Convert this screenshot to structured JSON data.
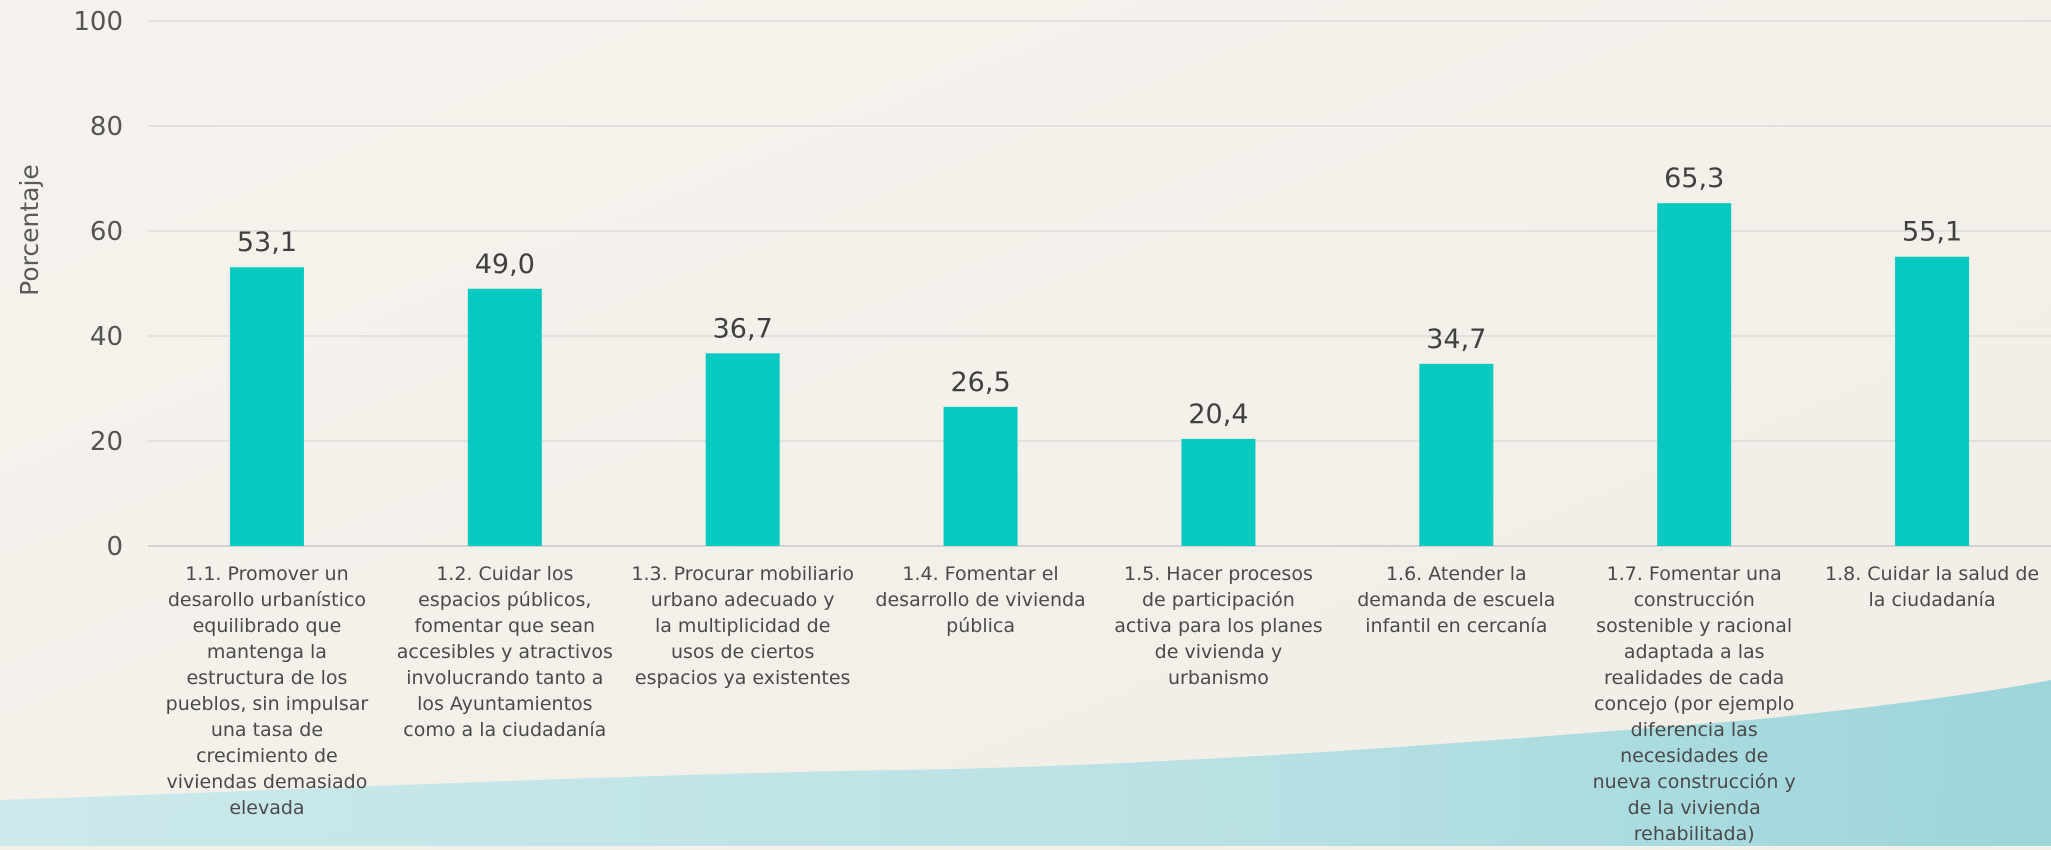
{
  "chart_data": {
    "type": "bar",
    "ylabel": "Porcentaje",
    "ylim": [
      0,
      100
    ],
    "yticks": [
      0,
      20,
      40,
      60,
      80,
      100
    ],
    "grid": true,
    "bar_color": "#08c9bf",
    "categories": [
      "1.1. Promover un desarollo urbanístico equilibrado que mantenga la estructura de los pueblos, sin impulsar una tasa de crecimiento de viviendas demasiado elevada",
      "1.2. Cuidar los espacios públicos, fomentar que sean accesibles y atractivos involucrando tanto a los Ayuntamientos como a la ciudadanía",
      "1.3. Procurar mobiliario urbano adecuado y la multiplicidad de usos de ciertos espacios ya existentes",
      "1.4. Fomentar el desarrollo de vivienda pública",
      "1.5. Hacer procesos de participación activa para los planes de vivienda y urbanismo",
      "1.6. Atender la demanda de escuela infantil en cercanía",
      "1.7. Fomentar una construcción sostenible y racional adaptada a las realidades de cada concejo (por ejemplo diferencia las necesidades de nueva construcción y de la vivienda rehabilitada)",
      "1.8. Cuidar la salud de la ciudadanía"
    ],
    "category_lines": [
      [
        "1.1. Promover un",
        "desarollo urbanístico",
        "equilibrado que",
        "mantenga la",
        "estructura de los",
        "pueblos, sin impulsar",
        "una tasa de",
        "crecimiento de",
        "viviendas demasiado",
        "elevada"
      ],
      [
        "1.2. Cuidar los",
        "espacios públicos,",
        "fomentar que sean",
        "accesibles y atractivos",
        "involucrando tanto a",
        "los Ayuntamientos",
        "como a la ciudadanía"
      ],
      [
        "1.3. Procurar mobiliario",
        "urbano adecuado y",
        "la multiplicidad de",
        "usos de ciertos",
        "espacios ya existentes"
      ],
      [
        "1.4. Fomentar el",
        "desarrollo de vivienda",
        "pública"
      ],
      [
        "1.5. Hacer procesos",
        "de participación",
        "activa para los planes",
        "de vivienda y",
        "urbanismo"
      ],
      [
        "1.6. Atender la",
        "demanda de escuela",
        "infantil en cercanía"
      ],
      [
        "1.7. Fomentar una",
        "construcción",
        "sostenible y racional",
        "adaptada a las",
        "realidades de cada",
        "concejo (por ejemplo",
        "diferencia las",
        "necesidades de",
        "nueva construcción y",
        "de la vivienda",
        "rehabilitada)"
      ],
      [
        "1.8. Cuidar la salud de",
        "la ciudadanía"
      ]
    ],
    "values": [
      53.1,
      49.0,
      36.7,
      26.5,
      20.4,
      34.7,
      65.3,
      55.1
    ],
    "data_labels": [
      "53,1",
      "49,0",
      "36,7",
      "26,5",
      "20,4",
      "34,7",
      "65,3",
      "55,1"
    ]
  }
}
